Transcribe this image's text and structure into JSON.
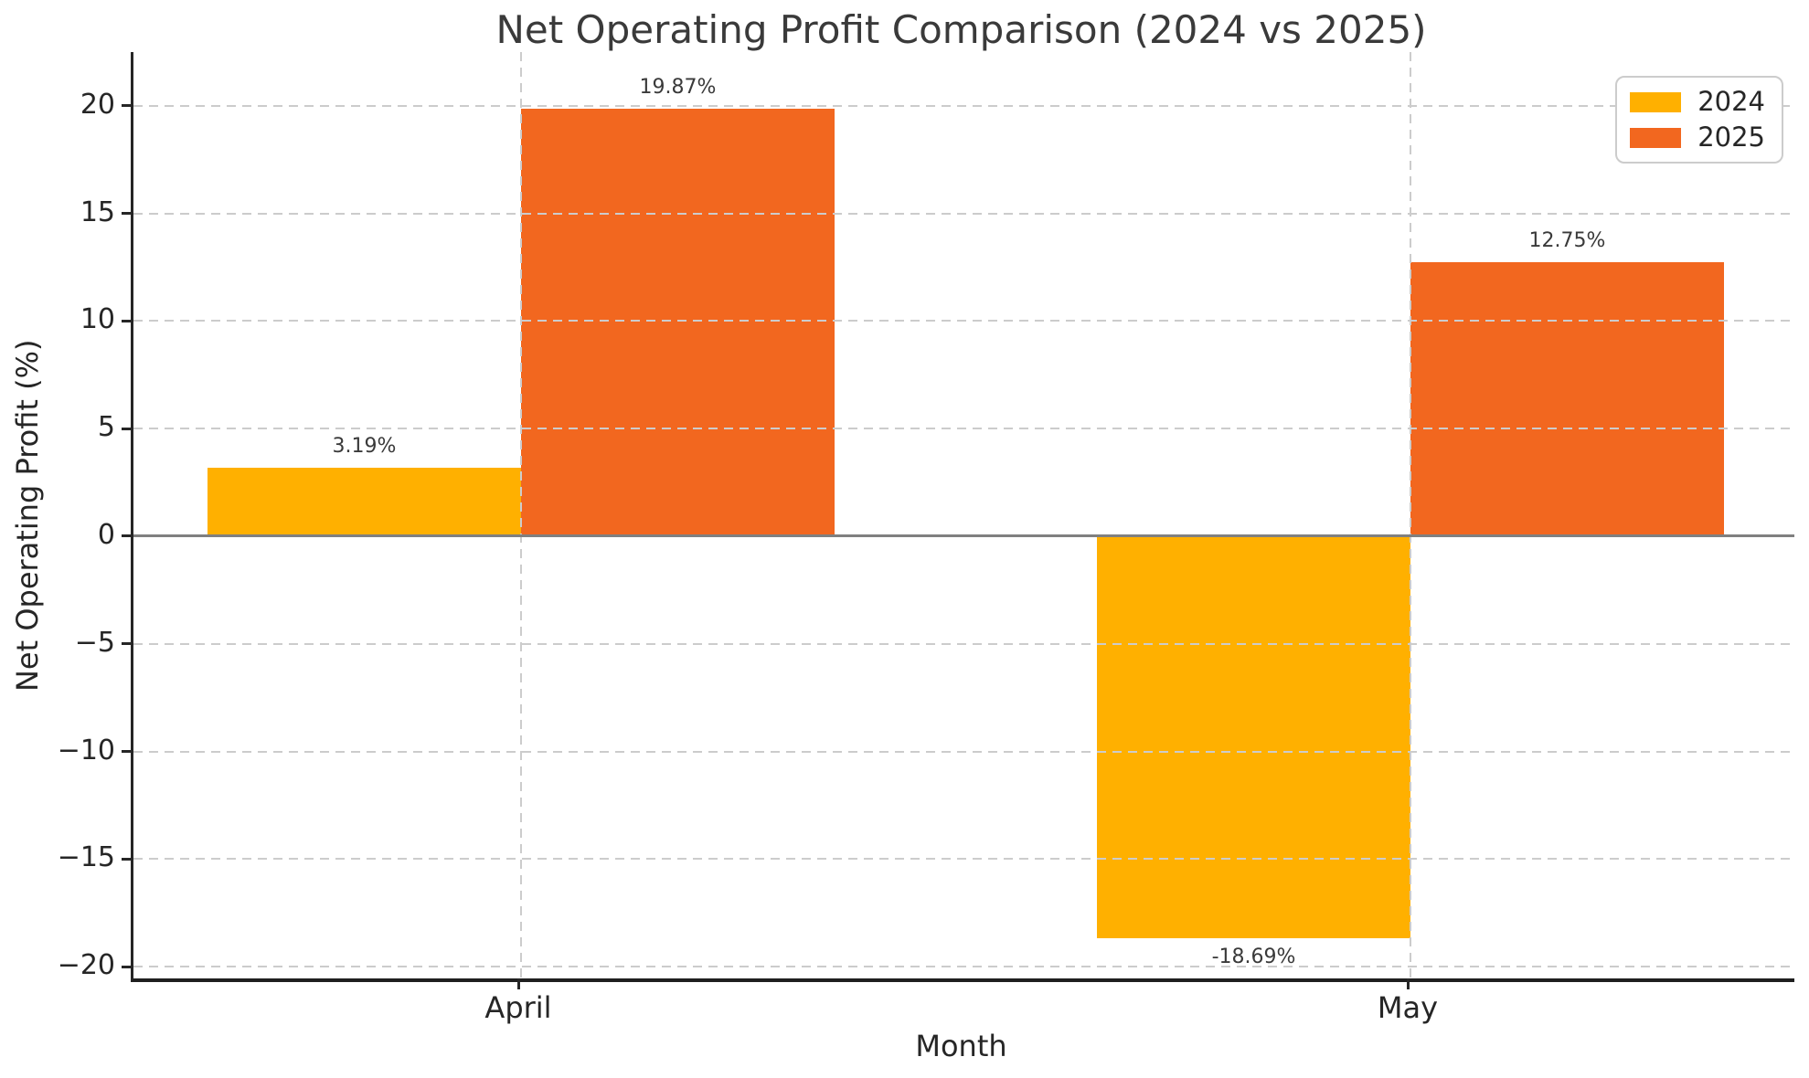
{
  "chart_data": {
    "type": "bar",
    "title": "Net Operating Profit Comparison (2024 vs 2025)",
    "xlabel": "Month",
    "ylabel": "Net Operating Profit (%)",
    "categories": [
      "April",
      "May"
    ],
    "series": [
      {
        "name": "2024",
        "color": "#FFB000",
        "values": [
          3.19,
          -18.69
        ],
        "bar_labels": [
          "3.19%",
          "-18.69%"
        ]
      },
      {
        "name": "2025",
        "color": "#F2671F",
        "values": [
          19.87,
          12.75
        ],
        "bar_labels": [
          "19.87%",
          "12.75%"
        ]
      }
    ],
    "yticks": [
      -20,
      -15,
      -10,
      -5,
      0,
      5,
      10,
      15,
      20
    ],
    "ytick_labels": [
      "−20",
      "−15",
      "−10",
      "−5",
      "0",
      "5",
      "10",
      "15",
      "20"
    ],
    "ylim": [
      -20.55,
      22.5
    ],
    "grid": {
      "axis": "both",
      "style": "dashed",
      "color": "#cccccc",
      "above_bars": true
    },
    "zero_line": {
      "show": true,
      "color": "#808080"
    },
    "legend": {
      "position": "upper right"
    }
  },
  "colors": {
    "background": "#ffffff",
    "spine": "#262626",
    "grid": "#cccccc",
    "zero_line": "#808080",
    "title_text": "#3a3a3a",
    "tick_text": "#262626",
    "value_label_text": "#3a3a3a"
  }
}
